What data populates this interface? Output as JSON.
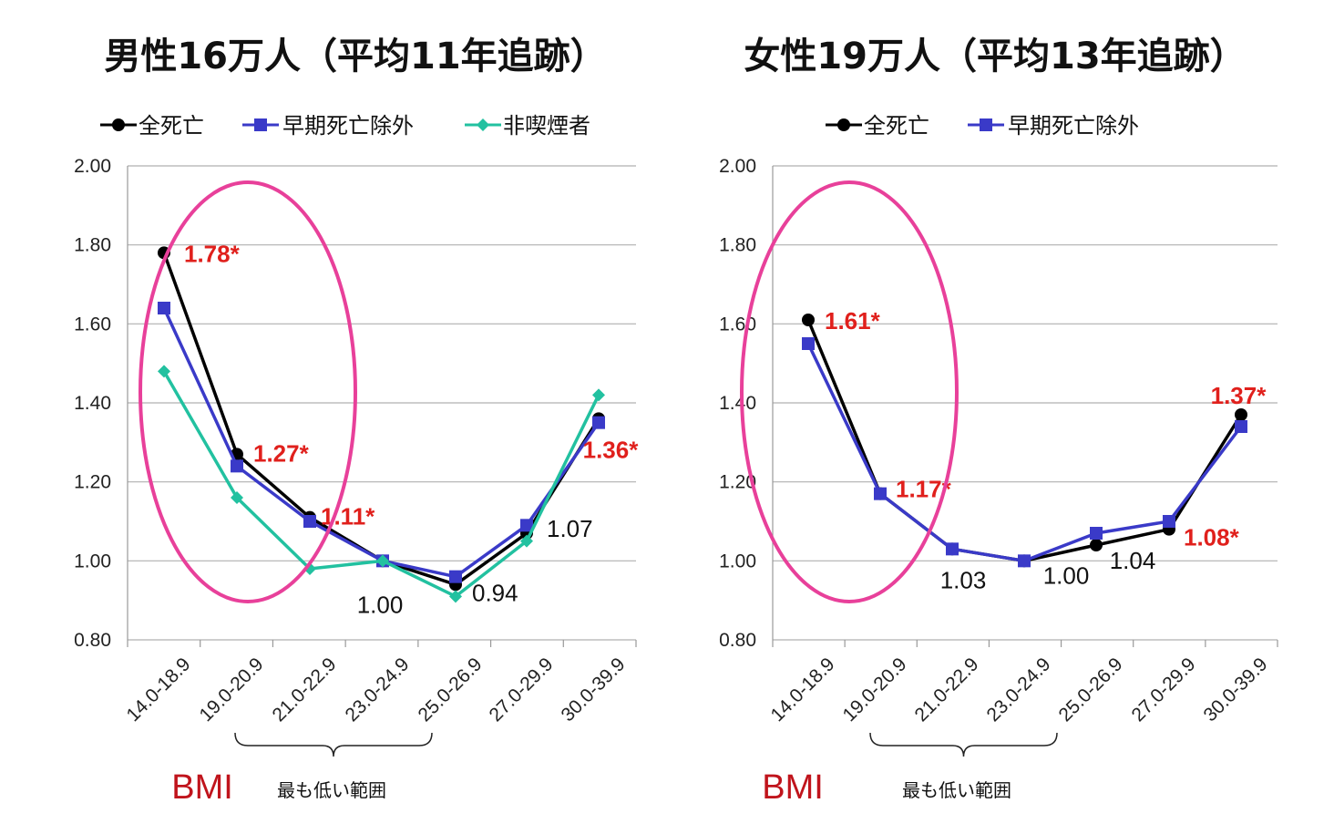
{
  "colors": {
    "all": "#000000",
    "early": "#3a3ac8",
    "nonsmoker": "#22c1a0",
    "highlight": "#e8409a",
    "red_label": "#e0201c",
    "bmi": "#c0141c",
    "grid": "#b0b0b0"
  },
  "chart_data": [
    {
      "type": "line",
      "title": "男性16万人（平均11年追跡）",
      "categories": [
        "14.0-18.9",
        "19.0-20.9",
        "21.0-22.9",
        "23.0-24.9",
        "25.0-26.9",
        "27.0-29.9",
        "30.0-39.9"
      ],
      "yticks": [
        "2.00",
        "1.80",
        "1.60",
        "1.40",
        "1.20",
        "1.00",
        "0.80"
      ],
      "ylim": [
        0.8,
        2.0
      ],
      "grid": true,
      "legend_position": "top",
      "series": [
        {
          "key": "all",
          "name": "全死亡",
          "marker": "circle",
          "values": [
            1.78,
            1.27,
            1.11,
            1.0,
            0.94,
            1.07,
            1.36
          ]
        },
        {
          "key": "early",
          "name": "早期死亡除外",
          "marker": "square",
          "values": [
            1.64,
            1.24,
            1.1,
            1.0,
            0.96,
            1.09,
            1.35
          ]
        },
        {
          "key": "nonsmoker",
          "name": "非喫煙者",
          "marker": "diamond",
          "values": [
            1.48,
            1.16,
            0.98,
            1.0,
            0.91,
            1.05,
            1.42
          ]
        }
      ],
      "annotations": [
        {
          "text": "1.78*",
          "style": "red",
          "category_index": 0,
          "value": 1.78
        },
        {
          "text": "1.27*",
          "style": "red",
          "category_index": 1,
          "value": 1.27
        },
        {
          "text": "1.11*",
          "style": "red",
          "category_index": 2,
          "value": 1.11
        },
        {
          "text": "1.00",
          "style": "black",
          "category_index": 3,
          "value": 1.0
        },
        {
          "text": "0.94",
          "style": "black",
          "category_index": 4,
          "value": 0.94
        },
        {
          "text": "1.07",
          "style": "black",
          "category_index": 5,
          "value": 1.07
        },
        {
          "text": "1.36*",
          "style": "red",
          "category_index": 6,
          "value": 1.36
        }
      ],
      "xlabel": "BMI",
      "brace_label": "最も低い範囲"
    },
    {
      "type": "line",
      "title": "女性19万人（平均13年追跡）",
      "categories": [
        "14.0-18.9",
        "19.0-20.9",
        "21.0-22.9",
        "23.0-24.9",
        "25.0-26.9",
        "27.0-29.9",
        "30.0-39.9"
      ],
      "yticks": [
        "2.00",
        "1.80",
        "1.60",
        "1.40",
        "1.20",
        "1.00",
        "0.80"
      ],
      "ylim": [
        0.8,
        2.0
      ],
      "grid": true,
      "legend_position": "top",
      "series": [
        {
          "key": "all",
          "name": "全死亡",
          "marker": "circle",
          "values": [
            1.61,
            1.17,
            1.03,
            1.0,
            1.04,
            1.08,
            1.37
          ]
        },
        {
          "key": "early",
          "name": "早期死亡除外",
          "marker": "square",
          "values": [
            1.55,
            1.17,
            1.03,
            1.0,
            1.07,
            1.1,
            1.34
          ]
        }
      ],
      "annotations": [
        {
          "text": "1.61*",
          "style": "red",
          "category_index": 0,
          "value": 1.61
        },
        {
          "text": "1.17*",
          "style": "red",
          "category_index": 1,
          "value": 1.17
        },
        {
          "text": "1.03",
          "style": "black",
          "category_index": 2,
          "value": 1.03
        },
        {
          "text": "1.00",
          "style": "black",
          "category_index": 3,
          "value": 1.0
        },
        {
          "text": "1.04",
          "style": "black",
          "category_index": 4,
          "value": 1.04
        },
        {
          "text": "1.08*",
          "style": "red",
          "category_index": 5,
          "value": 1.08
        },
        {
          "text": "1.37*",
          "style": "red",
          "category_index": 6,
          "value": 1.37
        }
      ],
      "xlabel": "BMI",
      "brace_label": "最も低い範囲"
    }
  ]
}
